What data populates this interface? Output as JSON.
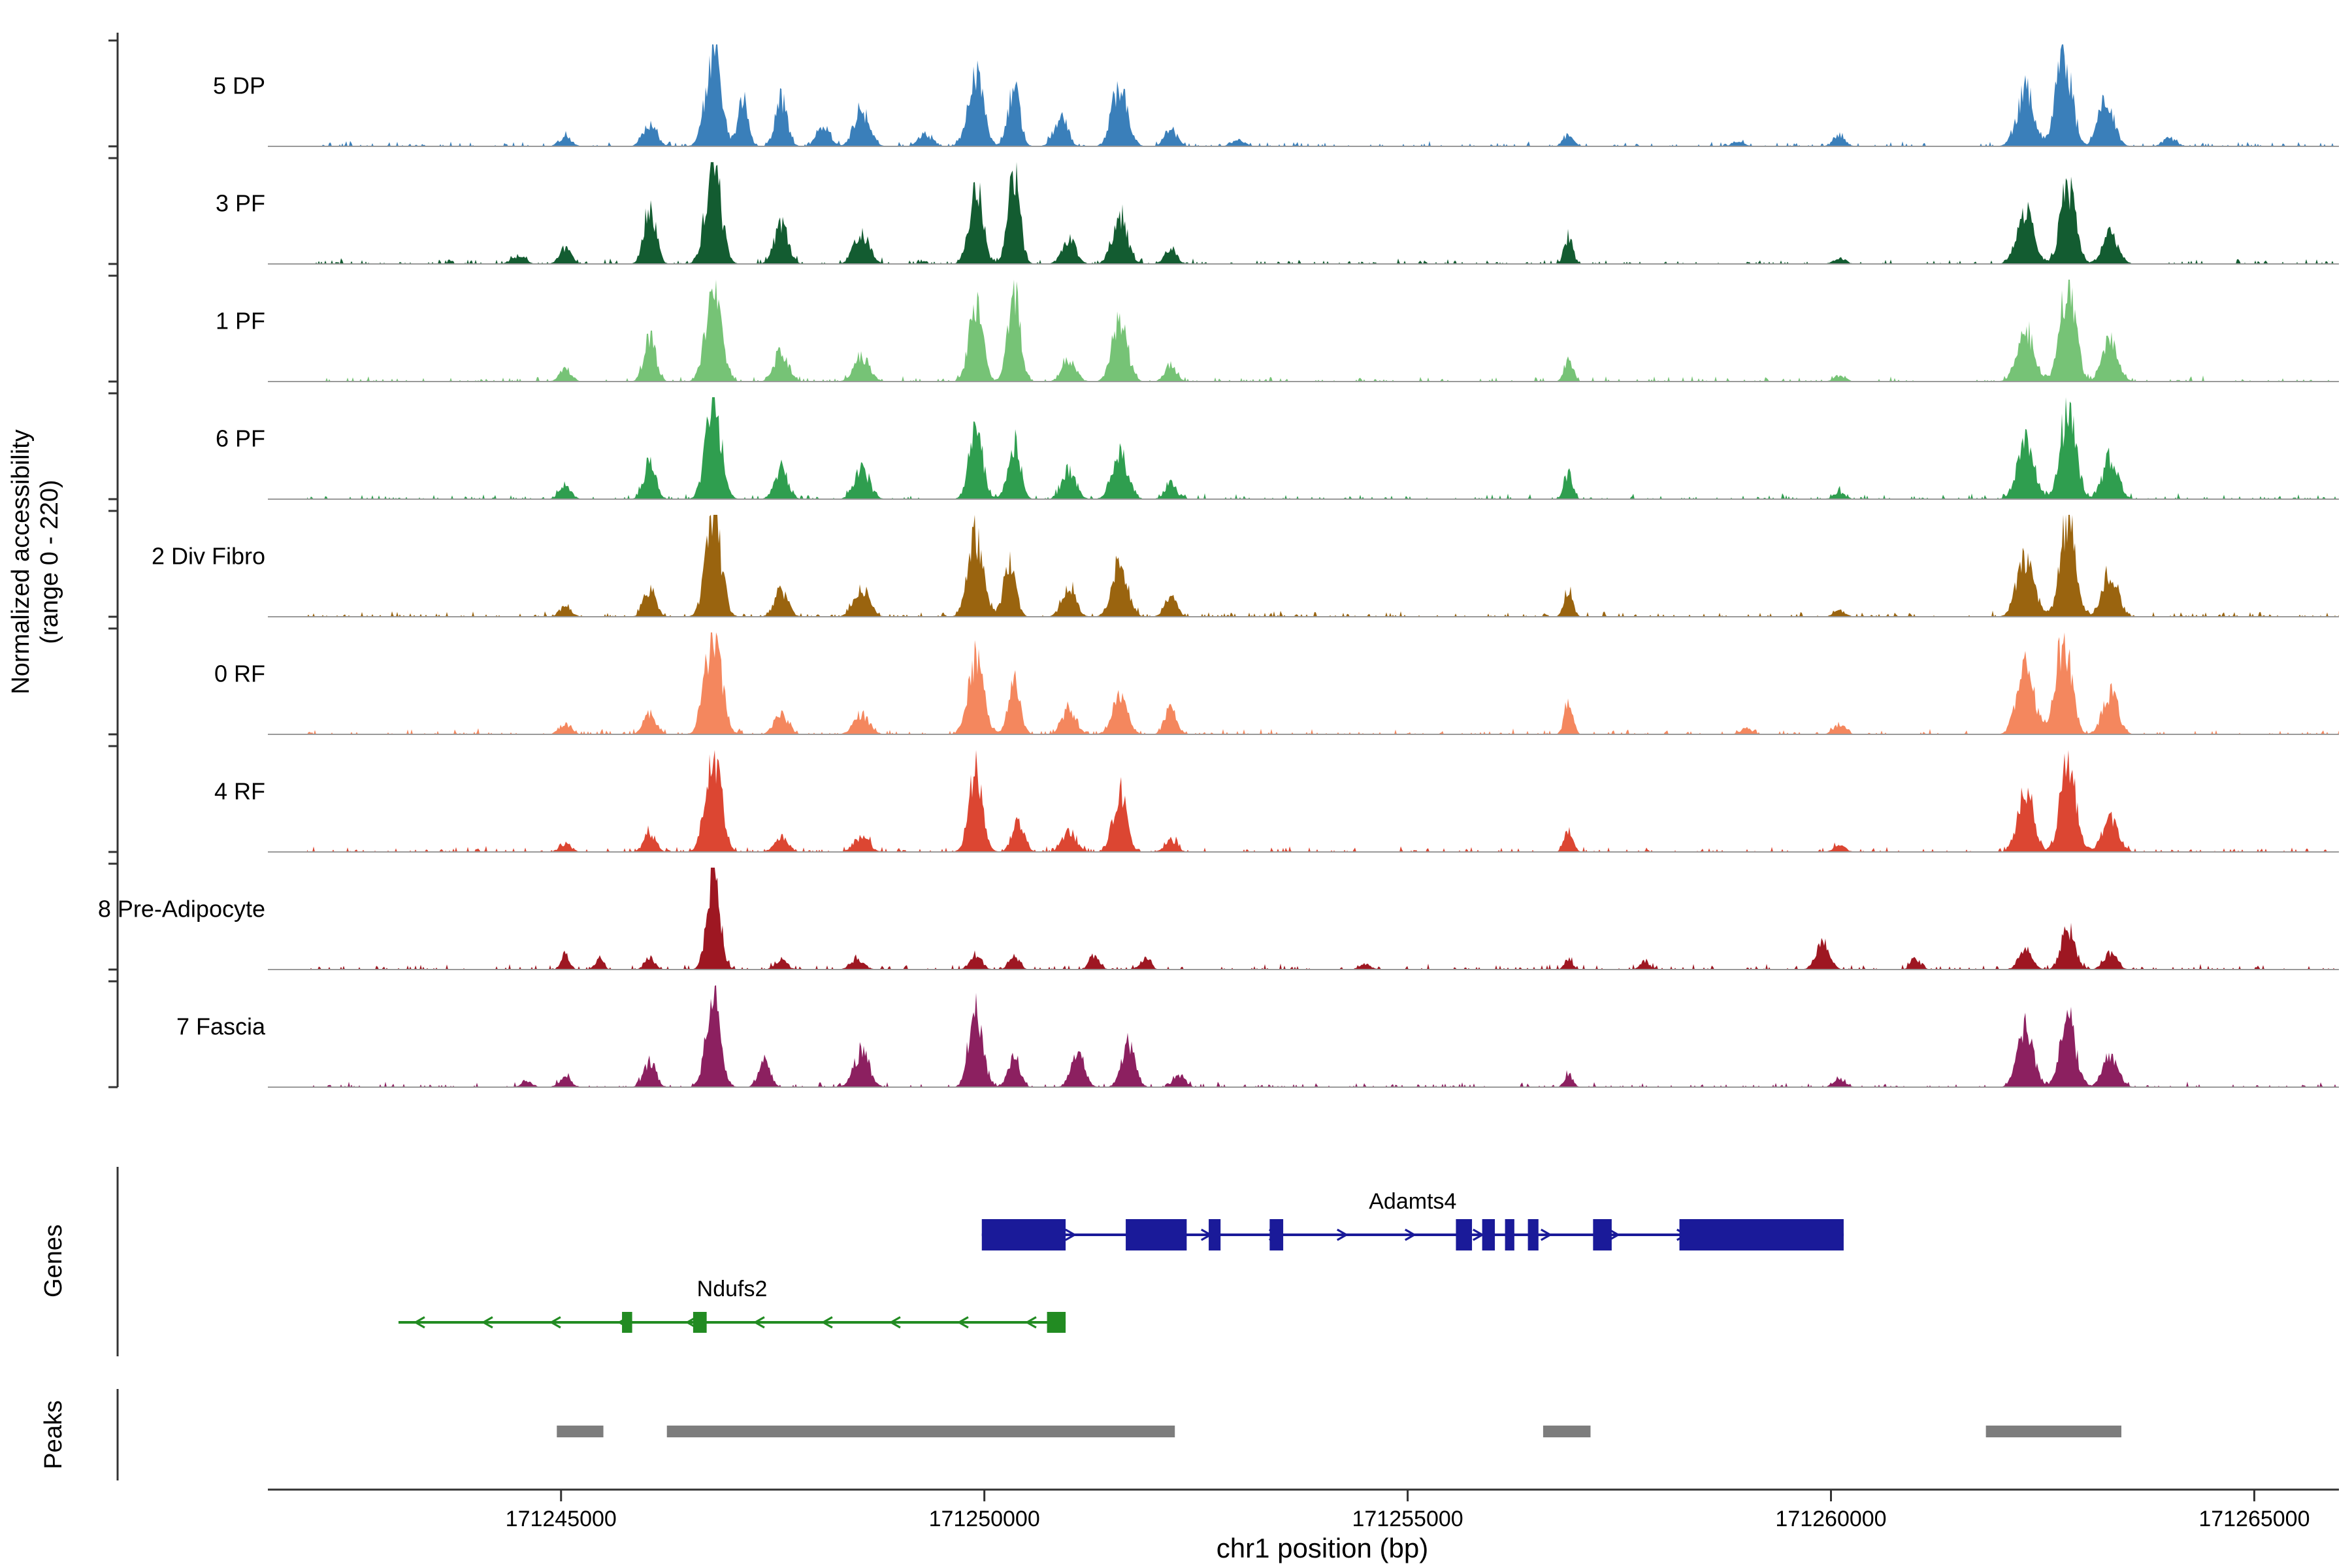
{
  "figure": {
    "y_axis_title_line1": "Normalized accessibility",
    "y_axis_title_line2": "(range 0 - 220)",
    "genes_section_label": "Genes",
    "peaks_section_label": "Peaks",
    "x_axis_title": "chr1 position (bp)"
  },
  "chart_data": {
    "type": "area",
    "title": "",
    "xlabel": "chr1 position (bp)",
    "ylabel": "Normalized accessibility (range 0 - 220)",
    "x_domain": [
      171242000,
      171266000
    ],
    "x_ticks": [
      171245000,
      171250000,
      171255000,
      171260000,
      171265000
    ],
    "track_y_range": [
      0,
      220
    ],
    "grid": false,
    "baseline_color": "#9a9a9a",
    "axis_color": "#333333",
    "peak_bar_color": "#7d7d7d",
    "tracks": [
      {
        "label": "5 DP",
        "color": "#3a7fba",
        "peaks": [
          [
            171245050,
            0.1,
            70
          ],
          [
            171246050,
            0.22,
            80
          ],
          [
            171246800,
            0.97,
            90
          ],
          [
            171247150,
            0.45,
            60
          ],
          [
            171247600,
            0.45,
            70
          ],
          [
            171248100,
            0.18,
            80
          ],
          [
            171248550,
            0.35,
            90
          ],
          [
            171249300,
            0.12,
            80
          ],
          [
            171249900,
            0.72,
            90
          ],
          [
            171250350,
            0.55,
            70
          ],
          [
            171250900,
            0.28,
            80
          ],
          [
            171251600,
            0.62,
            90
          ],
          [
            171252200,
            0.18,
            70
          ],
          [
            171253000,
            0.06,
            80
          ],
          [
            171256900,
            0.1,
            60
          ],
          [
            171258900,
            0.05,
            70
          ],
          [
            171260100,
            0.1,
            70
          ],
          [
            171262300,
            0.55,
            100
          ],
          [
            171262750,
            0.95,
            90
          ],
          [
            171263250,
            0.45,
            90
          ],
          [
            171264000,
            0.08,
            80
          ]
        ]
      },
      {
        "label": "3 PF",
        "color": "#135c31",
        "peaks": [
          [
            171244500,
            0.08,
            80
          ],
          [
            171245050,
            0.15,
            70
          ],
          [
            171246050,
            0.55,
            70
          ],
          [
            171246800,
            0.95,
            90
          ],
          [
            171247600,
            0.4,
            80
          ],
          [
            171248550,
            0.3,
            90
          ],
          [
            171249900,
            0.78,
            80
          ],
          [
            171250350,
            0.85,
            70
          ],
          [
            171251000,
            0.25,
            80
          ],
          [
            171251600,
            0.45,
            90
          ],
          [
            171252200,
            0.15,
            70
          ],
          [
            171256900,
            0.28,
            50
          ],
          [
            171260100,
            0.06,
            70
          ],
          [
            171262300,
            0.5,
            100
          ],
          [
            171262800,
            0.75,
            90
          ],
          [
            171263300,
            0.3,
            90
          ]
        ]
      },
      {
        "label": "1 PF",
        "color": "#76c376",
        "peaks": [
          [
            171245050,
            0.12,
            70
          ],
          [
            171246050,
            0.42,
            70
          ],
          [
            171246800,
            0.92,
            90
          ],
          [
            171247600,
            0.3,
            80
          ],
          [
            171248550,
            0.25,
            90
          ],
          [
            171249900,
            0.75,
            80
          ],
          [
            171250350,
            0.9,
            70
          ],
          [
            171251000,
            0.22,
            80
          ],
          [
            171251600,
            0.55,
            90
          ],
          [
            171252200,
            0.15,
            70
          ],
          [
            171256900,
            0.22,
            50
          ],
          [
            171260100,
            0.06,
            70
          ],
          [
            171262300,
            0.5,
            100
          ],
          [
            171262800,
            0.95,
            90
          ],
          [
            171263300,
            0.4,
            90
          ]
        ]
      },
      {
        "label": "6 PF",
        "color": "#2f9e4f",
        "peaks": [
          [
            171245050,
            0.12,
            70
          ],
          [
            171246050,
            0.38,
            70
          ],
          [
            171246800,
            0.95,
            90
          ],
          [
            171247600,
            0.3,
            80
          ],
          [
            171248550,
            0.28,
            90
          ],
          [
            171249900,
            0.68,
            80
          ],
          [
            171250350,
            0.58,
            70
          ],
          [
            171251000,
            0.3,
            80
          ],
          [
            171251600,
            0.48,
            90
          ],
          [
            171252200,
            0.15,
            70
          ],
          [
            171256900,
            0.25,
            50
          ],
          [
            171260100,
            0.06,
            70
          ],
          [
            171262300,
            0.55,
            100
          ],
          [
            171262800,
            0.88,
            90
          ],
          [
            171263300,
            0.4,
            90
          ]
        ]
      },
      {
        "label": "2 Div Fibro",
        "color": "#9a640f",
        "peaks": [
          [
            171245050,
            0.1,
            70
          ],
          [
            171246050,
            0.28,
            70
          ],
          [
            171246800,
            0.97,
            90
          ],
          [
            171247600,
            0.25,
            80
          ],
          [
            171248550,
            0.28,
            90
          ],
          [
            171249900,
            0.8,
            90
          ],
          [
            171250300,
            0.55,
            70
          ],
          [
            171251000,
            0.3,
            80
          ],
          [
            171251600,
            0.55,
            90
          ],
          [
            171252200,
            0.2,
            70
          ],
          [
            171256900,
            0.28,
            50
          ],
          [
            171260100,
            0.06,
            70
          ],
          [
            171262300,
            0.6,
            100
          ],
          [
            171262800,
            0.95,
            90
          ],
          [
            171263300,
            0.45,
            90
          ]
        ]
      },
      {
        "label": "0 RF",
        "color": "#f4875e",
        "peaks": [
          [
            171245050,
            0.1,
            70
          ],
          [
            171246050,
            0.22,
            70
          ],
          [
            171246800,
            1.0,
            95
          ],
          [
            171247600,
            0.2,
            80
          ],
          [
            171248550,
            0.2,
            90
          ],
          [
            171249900,
            0.75,
            90
          ],
          [
            171250350,
            0.55,
            70
          ],
          [
            171251000,
            0.25,
            80
          ],
          [
            171251600,
            0.35,
            90
          ],
          [
            171252200,
            0.25,
            70
          ],
          [
            171256900,
            0.28,
            50
          ],
          [
            171259000,
            0.06,
            70
          ],
          [
            171260100,
            0.1,
            70
          ],
          [
            171262300,
            0.65,
            100
          ],
          [
            171262750,
            0.95,
            90
          ],
          [
            171263300,
            0.4,
            90
          ]
        ]
      },
      {
        "label": "4 RF",
        "color": "#dc4632",
        "peaks": [
          [
            171245050,
            0.08,
            70
          ],
          [
            171246050,
            0.18,
            70
          ],
          [
            171246800,
            1.0,
            90
          ],
          [
            171247600,
            0.15,
            80
          ],
          [
            171248550,
            0.15,
            90
          ],
          [
            171249900,
            0.85,
            80
          ],
          [
            171250400,
            0.3,
            70
          ],
          [
            171251000,
            0.2,
            80
          ],
          [
            171251600,
            0.58,
            80
          ],
          [
            171252200,
            0.12,
            70
          ],
          [
            171256900,
            0.22,
            50
          ],
          [
            171260100,
            0.06,
            70
          ],
          [
            171262300,
            0.6,
            90
          ],
          [
            171262800,
            0.88,
            90
          ],
          [
            171263300,
            0.35,
            90
          ]
        ]
      },
      {
        "label": "8 Pre-Adipocyte",
        "color": "#9e1722",
        "peaks": [
          [
            171245050,
            0.15,
            50
          ],
          [
            171245450,
            0.1,
            50
          ],
          [
            171246050,
            0.12,
            60
          ],
          [
            171246800,
            1.0,
            75
          ],
          [
            171247600,
            0.1,
            70
          ],
          [
            171248500,
            0.1,
            80
          ],
          [
            171249900,
            0.15,
            70
          ],
          [
            171250350,
            0.15,
            60
          ],
          [
            171251300,
            0.15,
            60
          ],
          [
            171251900,
            0.12,
            60
          ],
          [
            171254500,
            0.05,
            70
          ],
          [
            171256900,
            0.1,
            50
          ],
          [
            171257800,
            0.08,
            60
          ],
          [
            171259900,
            0.25,
            80
          ],
          [
            171261000,
            0.1,
            60
          ],
          [
            171262300,
            0.2,
            80
          ],
          [
            171262800,
            0.42,
            80
          ],
          [
            171263300,
            0.15,
            80
          ]
        ]
      },
      {
        "label": "7 Fascia",
        "color": "#8c2060",
        "peaks": [
          [
            171244600,
            0.05,
            70
          ],
          [
            171245050,
            0.1,
            70
          ],
          [
            171246050,
            0.25,
            70
          ],
          [
            171246800,
            0.88,
            85
          ],
          [
            171247400,
            0.25,
            70
          ],
          [
            171248550,
            0.35,
            90
          ],
          [
            171249900,
            0.75,
            80
          ],
          [
            171250350,
            0.3,
            70
          ],
          [
            171251100,
            0.3,
            80
          ],
          [
            171251700,
            0.42,
            80
          ],
          [
            171252300,
            0.12,
            70
          ],
          [
            171256900,
            0.12,
            50
          ],
          [
            171260100,
            0.08,
            70
          ],
          [
            171262300,
            0.55,
            95
          ],
          [
            171262800,
            0.65,
            90
          ],
          [
            171263300,
            0.3,
            90
          ]
        ]
      }
    ],
    "genes": [
      {
        "name": "Adamts4",
        "color": "#1a1a99",
        "strand": "+",
        "start": 171249970,
        "end": 171260150,
        "exons": [
          [
            171249970,
            171250960
          ],
          [
            171251670,
            171252390
          ],
          [
            171252650,
            171252790
          ],
          [
            171253370,
            171253530
          ],
          [
            171255570,
            171255760
          ],
          [
            171255880,
            171256030
          ],
          [
            171256150,
            171256260
          ],
          [
            171256420,
            171256545
          ],
          [
            171257190,
            171257410
          ],
          [
            171258210,
            171260150
          ]
        ]
      },
      {
        "name": "Ndufs2",
        "color": "#228B22",
        "strand": "-",
        "start": 171243080,
        "end": 171250960,
        "exons": [
          [
            171245720,
            171245840
          ],
          [
            171246560,
            171246720
          ],
          [
            171250740,
            171250960
          ]
        ]
      }
    ],
    "peak_regions": [
      [
        171244950,
        171245500
      ],
      [
        171246250,
        171252250
      ],
      [
        171256600,
        171257160
      ],
      [
        171261830,
        171263430
      ]
    ]
  }
}
